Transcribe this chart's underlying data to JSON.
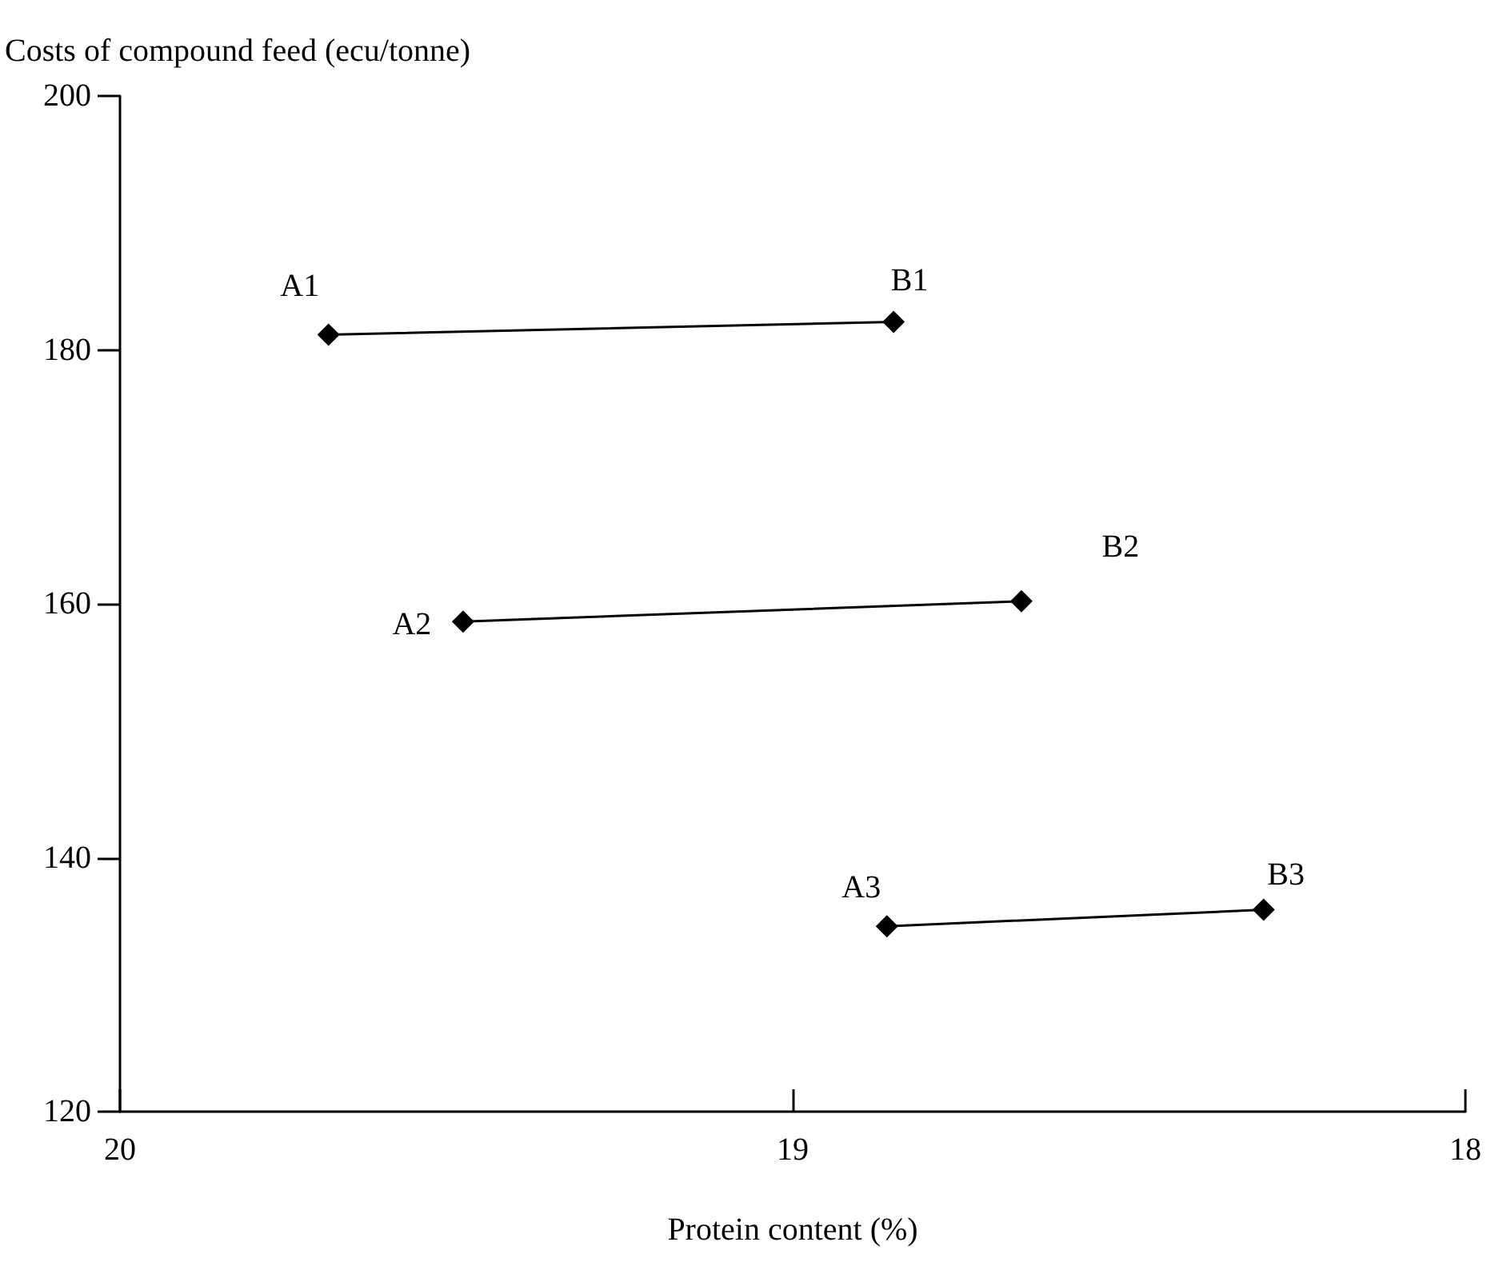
{
  "chart_data": {
    "type": "line",
    "xlabel": "Protein content (%)",
    "ylabel": "Costs of compound feed (ecu/tonne)",
    "xlim": [
      20,
      18
    ],
    "xticks": [
      20,
      19,
      18
    ],
    "ylim": [
      120,
      200
    ],
    "yticks": [
      120,
      140,
      160,
      180,
      200
    ],
    "grid": false,
    "marker": "diamond",
    "line_style": "solid",
    "series": [
      {
        "color": "#000000",
        "x": [
          19.69,
          18.85
        ],
        "values": [
          181.2,
          182.2
        ]
      },
      {
        "color": "#000000",
        "x": [
          19.49,
          18.66
        ],
        "values": [
          158.6,
          160.2
        ]
      },
      {
        "color": "#000000",
        "x": [
          18.86,
          18.3
        ],
        "values": [
          134.6,
          135.9
        ]
      }
    ],
    "annotations": [
      {
        "text": "A1",
        "x": 19.69,
        "y": 181.2
      },
      {
        "text": "B1",
        "x": 18.85,
        "y": 182.2
      },
      {
        "text": "A2",
        "x": 19.49,
        "y": 158.6
      },
      {
        "text": "B2",
        "x": 18.66,
        "y": 160.2
      },
      {
        "text": "A3",
        "x": 18.86,
        "y": 134.6
      },
      {
        "text": "B3",
        "x": 18.3,
        "y": 135.9
      }
    ]
  }
}
